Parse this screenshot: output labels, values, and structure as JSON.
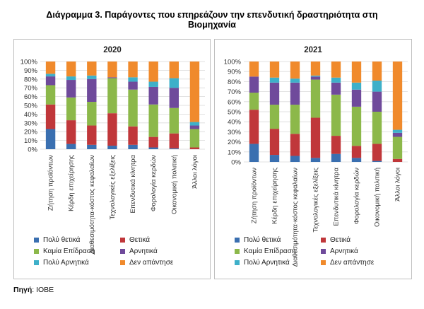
{
  "page": {
    "title_line1": "Διάγραμμα 3. Παράγοντες που επηρεάζουν την επενδυτική δραστηριότητα στη",
    "title_line2": "Βιομηχανία",
    "source_label": "Πηγή",
    "source_value": ": ΙΟΒΕ"
  },
  "colors": {
    "Πολύ θετικά": "#3a6fb0",
    "Θετικά": "#c0373a",
    "Καμία Επίδραση": "#8cb84a",
    "Αρνητικά": "#6f4a9b",
    "Πολύ Αρνητικά": "#3eb0c9",
    "Δεν απάντησε": "#f08a2c"
  },
  "chart_data": [
    {
      "type": "bar",
      "stacked": true,
      "title": "2020",
      "categories": [
        "Ζήτηση προϊόντων",
        "Κέρδη επιχείρησης",
        "Διαθεσιμότητα-κόστος κεφαλαίων",
        "Τεχνολογικές εξελίξεις",
        "Επενδυτικά κίνητρα",
        "Φορολογία κερδών",
        "Οικονομική πολιτική",
        "Άλλοι λόγοι"
      ],
      "ylim": [
        0,
        100
      ],
      "yticks": [
        "0%",
        "10%",
        "20%",
        "30%",
        "40%",
        "50%",
        "60%",
        "70%",
        "80%",
        "90%",
        "100%"
      ],
      "legend_position": "bottom",
      "series": [
        {
          "name": "Πολύ θετικά",
          "values": [
            23,
            6,
            5,
            4,
            5,
            2,
            1,
            0
          ]
        },
        {
          "name": "Θετικά",
          "values": [
            28,
            27,
            22,
            37,
            21,
            12,
            17,
            2
          ]
        },
        {
          "name": "Καμία Επίδραση",
          "values": [
            22,
            26,
            27,
            40,
            42,
            37,
            29,
            21
          ]
        },
        {
          "name": "Αρνητικά",
          "values": [
            10,
            20,
            26,
            1,
            9,
            20,
            23,
            4
          ]
        },
        {
          "name": "Πολύ Αρνητικά",
          "values": [
            3,
            4,
            4,
            0,
            5,
            6,
            11,
            4
          ]
        },
        {
          "name": "Δεν απάντησε",
          "values": [
            14,
            17,
            16,
            18,
            18,
            23,
            19,
            69
          ]
        }
      ]
    },
    {
      "type": "bar",
      "stacked": true,
      "title": "2021",
      "categories": [
        "Ζήτηση προϊόντων",
        "Κέρδη επιχείρησης",
        "Διαθεσιμότητα-κόστος κεφαλαίων",
        "Τεχνολογικές εξελίξεις",
        "Επενδυτικά κίνητρα",
        "Φορολογία κερδών",
        "Οικονομική πολιτική",
        "Άλλοι λόγοι"
      ],
      "ylim": [
        0,
        100
      ],
      "yticks": [
        "0%",
        "10%",
        "20%",
        "30%",
        "40%",
        "50%",
        "60%",
        "70%",
        "80%",
        "90%",
        "100%"
      ],
      "legend_position": "bottom",
      "series": [
        {
          "name": "Πολύ θετικά",
          "values": [
            18,
            7,
            6,
            4,
            8,
            4,
            1,
            0
          ]
        },
        {
          "name": "Θετικά",
          "values": [
            34,
            26,
            22,
            40,
            18,
            12,
            17,
            3
          ]
        },
        {
          "name": "Καμία Επίδραση",
          "values": [
            17,
            24,
            29,
            38,
            41,
            39,
            32,
            22
          ]
        },
        {
          "name": "Αρνητικά",
          "values": [
            16,
            22,
            22,
            3,
            12,
            17,
            20,
            4
          ]
        },
        {
          "name": "Πολύ Αρνητικά",
          "values": [
            0,
            5,
            4,
            1,
            5,
            7,
            11,
            3
          ]
        },
        {
          "name": "Δεν απάντησε",
          "values": [
            15,
            16,
            17,
            14,
            16,
            21,
            19,
            68
          ]
        }
      ]
    }
  ]
}
